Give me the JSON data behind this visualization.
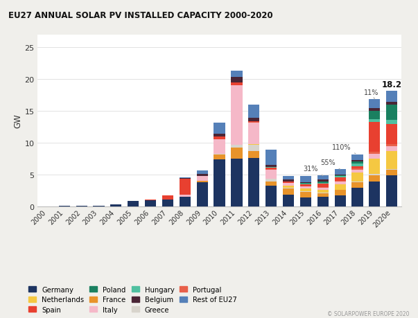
{
  "title": "EU27 ANNUAL SOLAR PV INSTALLED CAPACITY 2000-2020",
  "ylabel": "GW",
  "copyright": "© SOLARPOWER EUROPE 2020",
  "years": [
    "2000",
    "2001",
    "2002",
    "2003",
    "2004",
    "2005",
    "2006",
    "2007",
    "2008",
    "2009",
    "2010",
    "2011",
    "2012",
    "2013",
    "2014",
    "2015",
    "2016",
    "2017",
    "2018",
    "2019",
    "2020e"
  ],
  "series": {
    "Germany": [
      0.04,
      0.06,
      0.08,
      0.11,
      0.28,
      0.82,
      0.96,
      1.08,
      1.48,
      3.8,
      7.4,
      7.5,
      7.6,
      3.3,
      1.9,
      1.46,
      1.52,
      1.75,
      2.96,
      3.86,
      4.85
    ],
    "France": [
      0.0,
      0.0,
      0.0,
      0.0,
      0.0,
      0.0,
      0.01,
      0.02,
      0.05,
      0.18,
      0.72,
      1.75,
      1.15,
      0.6,
      0.92,
      0.87,
      0.58,
      0.87,
      0.87,
      1.08,
      0.87
    ],
    "Greece": [
      0.0,
      0.0,
      0.0,
      0.0,
      0.0,
      0.0,
      0.0,
      0.0,
      0.0,
      0.04,
      0.15,
      0.37,
      0.91,
      0.4,
      0.12,
      0.04,
      0.02,
      0.04,
      0.1,
      0.14,
      0.18
    ],
    "Netherlands": [
      0.0,
      0.0,
      0.0,
      0.0,
      0.0,
      0.0,
      0.0,
      0.0,
      0.0,
      0.0,
      0.0,
      0.05,
      0.13,
      0.07,
      0.35,
      0.44,
      0.45,
      0.85,
      1.4,
      2.47,
      2.79
    ],
    "Italy": [
      0.0,
      0.0,
      0.0,
      0.0,
      0.0,
      0.0,
      0.02,
      0.04,
      0.34,
      0.73,
      2.32,
      9.3,
      3.4,
      1.44,
      0.38,
      0.3,
      0.37,
      0.41,
      0.41,
      0.73,
      0.8
    ],
    "Portugal": [
      0.0,
      0.0,
      0.0,
      0.0,
      0.0,
      0.0,
      0.0,
      0.0,
      0.03,
      0.0,
      0.0,
      0.05,
      0.05,
      0.04,
      0.05,
      0.07,
      0.15,
      0.14,
      0.19,
      0.26,
      0.24
    ],
    "Spain": [
      0.0,
      0.0,
      0.0,
      0.0,
      0.0,
      0.0,
      0.06,
      0.56,
      2.48,
      0.07,
      0.37,
      0.4,
      0.1,
      0.29,
      0.15,
      0.3,
      0.55,
      0.53,
      0.4,
      4.7,
      3.2
    ],
    "Hungary": [
      0.0,
      0.0,
      0.0,
      0.0,
      0.0,
      0.0,
      0.0,
      0.0,
      0.0,
      0.0,
      0.0,
      0.0,
      0.0,
      0.05,
      0.03,
      0.08,
      0.1,
      0.2,
      0.41,
      0.46,
      0.7
    ],
    "Poland": [
      0.0,
      0.0,
      0.0,
      0.0,
      0.0,
      0.0,
      0.0,
      0.0,
      0.0,
      0.0,
      0.0,
      0.0,
      0.0,
      0.0,
      0.04,
      0.12,
      0.2,
      0.09,
      0.37,
      1.3,
      2.3
    ],
    "Belgium": [
      0.0,
      0.0,
      0.0,
      0.0,
      0.0,
      0.0,
      0.0,
      0.0,
      0.06,
      0.26,
      0.4,
      0.87,
      0.52,
      0.3,
      0.3,
      0.15,
      0.25,
      0.12,
      0.2,
      0.4,
      0.48
    ],
    "Rest of EU27": [
      0.0,
      0.0,
      0.0,
      0.0,
      0.0,
      0.0,
      0.0,
      0.0,
      0.1,
      0.6,
      1.8,
      1.0,
      2.1,
      2.4,
      0.5,
      0.95,
      0.65,
      0.85,
      0.85,
      1.45,
      1.69
    ]
  },
  "colors": {
    "Germany": "#1d3461",
    "France": "#e8932a",
    "Greece": "#d8d4cc",
    "Netherlands": "#f5c842",
    "Italy": "#f5b8c8",
    "Portugal": "#e8604a",
    "Spain": "#e84030",
    "Hungary": "#50c0a0",
    "Poland": "#1a8060",
    "Belgium": "#4a2535",
    "Rest of EU27": "#5580b8"
  },
  "stack_order": [
    "Germany",
    "France",
    "Greece",
    "Netherlands",
    "Italy",
    "Portugal",
    "Spain",
    "Hungary",
    "Poland",
    "Belgium",
    "Rest of EU27"
  ],
  "ylim": [
    0,
    27
  ],
  "yticks": [
    0,
    5,
    10,
    15,
    20,
    25
  ],
  "legend_order": [
    "Germany",
    "Netherlands",
    "Spain",
    "Poland",
    "France",
    "Italy",
    "Hungary",
    "Belgium",
    "Greece",
    "Portugal",
    "Rest of EU27"
  ],
  "bg_color": "#f0efeb",
  "plot_bg": "#ffffff",
  "ann_line_color": "#aaaaaa"
}
